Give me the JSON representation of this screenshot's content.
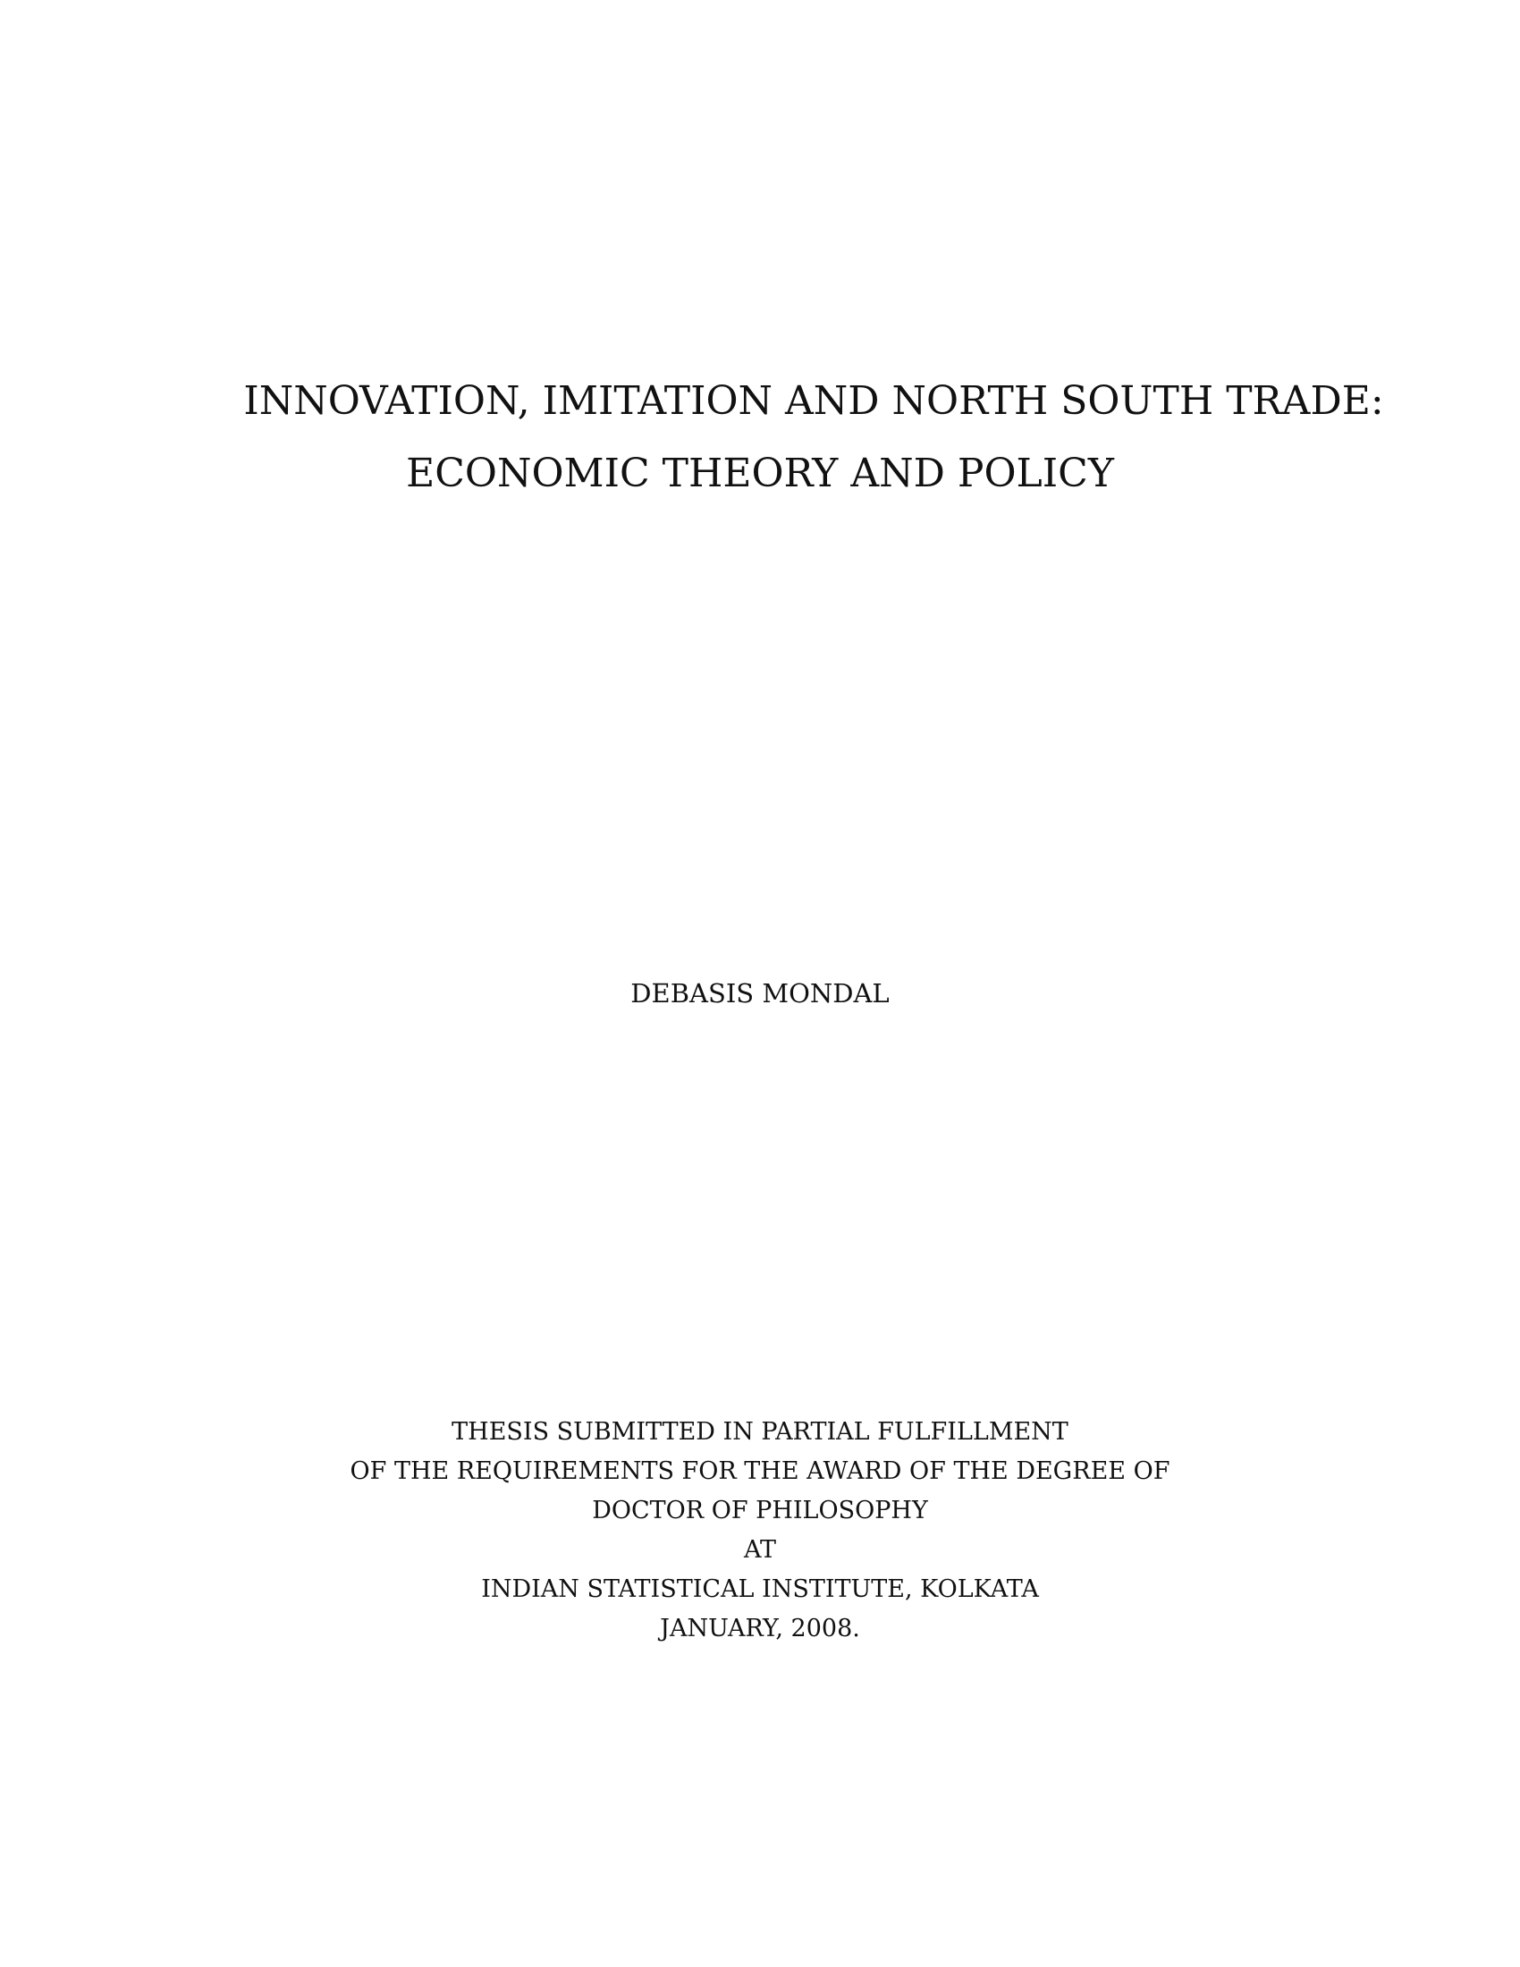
{
  "title": {
    "line_1": "INNOVATION, IMITATION AND NORTH SOUTH TRADE:",
    "line_2": "ECONOMIC THEORY AND POLICY"
  },
  "author": "DEBASIS MONDAL",
  "submission": {
    "lines": [
      "THESIS SUBMITTED IN PARTIAL FULFILLMENT",
      "OF THE REQUIREMENTS FOR THE AWARD OF THE DEGREE OF",
      "DOCTOR OF PHILOSOPHY",
      "AT",
      "INDIAN STATISTICAL INSTITUTE, KOLKATA",
      "JANUARY, 2008."
    ]
  }
}
